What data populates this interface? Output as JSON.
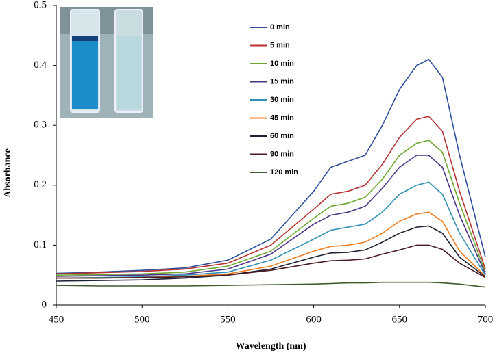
{
  "chart_data": {
    "type": "line",
    "x_label": "Wavelength (nm)",
    "y_label": "Absorbance",
    "x": [
      450,
      475,
      500,
      525,
      550,
      575,
      600,
      610,
      620,
      630,
      640,
      650,
      660,
      667,
      675,
      685,
      700
    ],
    "xlim": [
      450,
      700
    ],
    "xticks": [
      450,
      500,
      550,
      600,
      650,
      700
    ],
    "ylim": [
      0,
      0.5
    ],
    "yticks": [
      0,
      0.1,
      0.2,
      0.3,
      0.4,
      0.5
    ],
    "grid": false,
    "series": [
      {
        "name": "0 min",
        "color": "#2e4d9a",
        "values": [
          0.053,
          0.055,
          0.058,
          0.062,
          0.075,
          0.11,
          0.19,
          0.23,
          0.24,
          0.25,
          0.3,
          0.36,
          0.4,
          0.41,
          0.38,
          0.25,
          0.08
        ]
      },
      {
        "name": "5 min",
        "color": "#b83232",
        "values": [
          0.052,
          0.054,
          0.056,
          0.06,
          0.07,
          0.1,
          0.16,
          0.185,
          0.19,
          0.2,
          0.235,
          0.28,
          0.31,
          0.315,
          0.29,
          0.19,
          0.06
        ]
      },
      {
        "name": "10 min",
        "color": "#6ea832",
        "values": [
          0.05,
          0.051,
          0.052,
          0.055,
          0.065,
          0.09,
          0.145,
          0.165,
          0.17,
          0.18,
          0.21,
          0.25,
          0.27,
          0.275,
          0.255,
          0.17,
          0.055
        ]
      },
      {
        "name": "15 min",
        "color": "#4b3588",
        "values": [
          0.048,
          0.049,
          0.05,
          0.052,
          0.06,
          0.085,
          0.135,
          0.15,
          0.155,
          0.165,
          0.195,
          0.23,
          0.25,
          0.25,
          0.23,
          0.15,
          0.052
        ]
      },
      {
        "name": "30 min",
        "color": "#2f8fb5",
        "values": [
          0.045,
          0.046,
          0.047,
          0.05,
          0.055,
          0.075,
          0.11,
          0.125,
          0.13,
          0.135,
          0.155,
          0.185,
          0.2,
          0.205,
          0.185,
          0.12,
          0.05
        ]
      },
      {
        "name": "45 min",
        "color": "#ef7d22",
        "values": [
          0.045,
          0.045,
          0.046,
          0.048,
          0.052,
          0.065,
          0.09,
          0.098,
          0.1,
          0.105,
          0.12,
          0.14,
          0.152,
          0.155,
          0.14,
          0.09,
          0.048
        ]
      },
      {
        "name": "60 min",
        "color": "#1c2233",
        "values": [
          0.04,
          0.041,
          0.042,
          0.045,
          0.05,
          0.06,
          0.08,
          0.087,
          0.088,
          0.092,
          0.105,
          0.12,
          0.13,
          0.132,
          0.12,
          0.08,
          0.047
        ]
      },
      {
        "name": "90 min",
        "color": "#4a1a22",
        "values": [
          0.045,
          0.045,
          0.046,
          0.047,
          0.05,
          0.058,
          0.07,
          0.074,
          0.075,
          0.077,
          0.085,
          0.092,
          0.1,
          0.1,
          0.093,
          0.07,
          0.046
        ]
      },
      {
        "name": "120 min",
        "color": "#3c5a2a",
        "values": [
          0.033,
          0.032,
          0.032,
          0.032,
          0.033,
          0.034,
          0.035,
          0.036,
          0.037,
          0.037,
          0.038,
          0.038,
          0.038,
          0.038,
          0.037,
          0.035,
          0.03
        ]
      }
    ]
  }
}
